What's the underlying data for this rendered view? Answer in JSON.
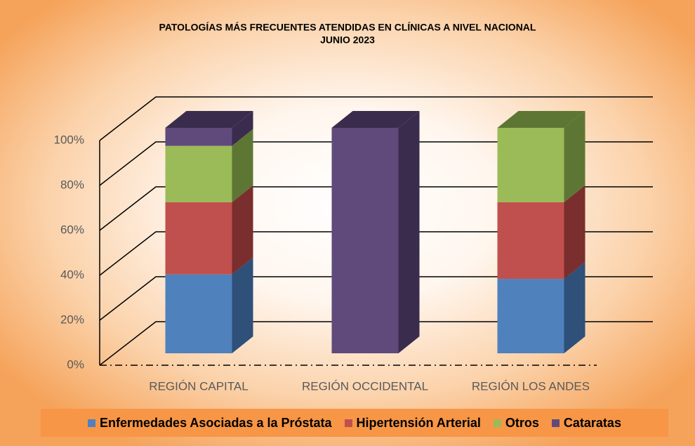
{
  "chart_data": {
    "type": "bar",
    "stacked": true,
    "title": "PATOLOGÍAS MÁS FRECUENTES ATENDIDAS EN CLÍNICAS A NIVEL NACIONAL",
    "subtitle": "JUNIO 2023",
    "categories": [
      "REGIÓN CAPITAL",
      "REGIÓN OCCIDENTAL",
      "REGIÓN LOS ANDES"
    ],
    "series": [
      {
        "name": "Enfermedades Asociadas a la Próstata",
        "color": "#4f81bd",
        "side": "#2e5079",
        "values": [
          35,
          0,
          33
        ]
      },
      {
        "name": "Hipertensión Arterial",
        "color": "#c0504d",
        "side": "#7a2e2d",
        "values": [
          32,
          0,
          34
        ]
      },
      {
        "name": "Otros",
        "color": "#9bbb59",
        "side": "#5e7634",
        "values": [
          25,
          0,
          33
        ]
      },
      {
        "name": "Cataratas",
        "color": "#604a7b",
        "side": "#3a2c4d",
        "values": [
          8,
          100,
          0
        ]
      }
    ],
    "ylim": [
      0,
      100
    ],
    "yticks": [
      {
        "value": 0,
        "label": "0%"
      },
      {
        "value": 20,
        "label": "20%"
      },
      {
        "value": 40,
        "label": "40%"
      },
      {
        "value": 60,
        "label": "60%"
      },
      {
        "value": 80,
        "label": "80%"
      },
      {
        "value": 100,
        "label": "100%"
      }
    ],
    "grid": true
  }
}
